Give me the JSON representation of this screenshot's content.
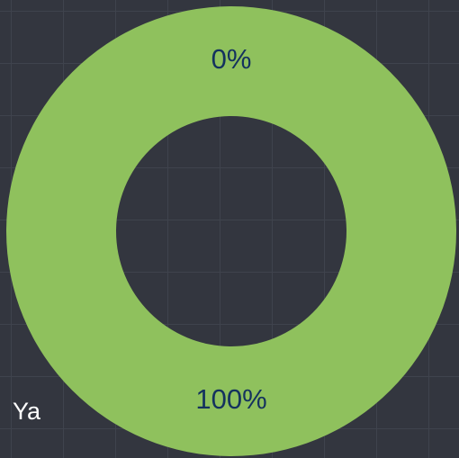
{
  "chart_data": {
    "type": "donut",
    "categories": [
      "Ya",
      null
    ],
    "values": [
      100,
      0
    ],
    "value_labels": [
      "100%",
      "0%"
    ],
    "colors": [
      "#8fc15d",
      "#5b9bd5"
    ]
  }
}
